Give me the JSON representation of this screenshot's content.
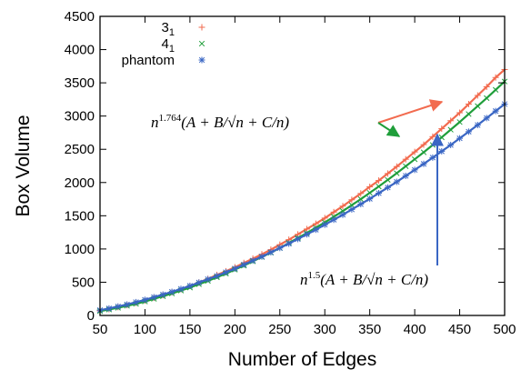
{
  "chart_data": {
    "type": "line",
    "title": "",
    "xlabel": "Number of Edges",
    "ylabel": "Box Volume",
    "xlim": [
      50,
      500
    ],
    "ylim": [
      0,
      4500
    ],
    "x_ticks": [
      50,
      100,
      150,
      200,
      250,
      300,
      350,
      400,
      450,
      500
    ],
    "y_ticks": [
      0,
      500,
      1000,
      1500,
      2000,
      2500,
      3000,
      3500,
      4000,
      4500
    ],
    "grid": false,
    "legend_position": "top-left",
    "series": [
      {
        "name": "3",
        "name_subscript": "1",
        "color": "#f26b4f",
        "marker": "plus",
        "x": [
          50,
          60,
          70,
          80,
          90,
          100,
          110,
          120,
          130,
          140,
          150,
          160,
          170,
          180,
          190,
          200,
          210,
          220,
          230,
          240,
          250,
          260,
          270,
          280,
          290,
          300,
          310,
          320,
          330,
          340,
          350,
          360,
          370,
          380,
          390,
          400,
          410,
          420,
          430,
          440,
          450,
          460,
          470,
          480,
          490,
          500
        ],
        "y": [
          70,
          95,
          125,
          155,
          190,
          225,
          265,
          305,
          350,
          395,
          445,
          495,
          550,
          610,
          665,
          725,
          790,
          855,
          920,
          990,
          1065,
          1140,
          1220,
          1300,
          1380,
          1465,
          1555,
          1645,
          1740,
          1835,
          1935,
          2030,
          2135,
          2240,
          2350,
          2460,
          2570,
          2690,
          2810,
          2930,
          3050,
          3180,
          3310,
          3440,
          3580,
          3700
        ]
      },
      {
        "name": "4",
        "name_subscript": "1",
        "color": "#1f9e3a",
        "marker": "cross",
        "x": [
          50,
          60,
          70,
          80,
          90,
          100,
          110,
          120,
          130,
          140,
          150,
          160,
          170,
          180,
          190,
          200,
          210,
          220,
          230,
          240,
          250,
          260,
          270,
          280,
          290,
          300,
          310,
          320,
          330,
          340,
          350,
          360,
          370,
          380,
          390,
          400,
          410,
          420,
          430,
          440,
          450,
          460,
          470,
          480,
          490,
          500
        ],
        "y": [
          65,
          90,
          115,
          145,
          175,
          210,
          250,
          290,
          330,
          375,
          420,
          470,
          520,
          575,
          630,
          690,
          750,
          815,
          880,
          945,
          1015,
          1090,
          1165,
          1240,
          1320,
          1400,
          1485,
          1570,
          1660,
          1750,
          1845,
          1940,
          2040,
          2140,
          2245,
          2350,
          2455,
          2565,
          2680,
          2795,
          2910,
          3030,
          3150,
          3270,
          3395,
          3520
        ]
      },
      {
        "name": "phantom",
        "color": "#3a66c4",
        "marker": "star",
        "x": [
          50,
          60,
          70,
          80,
          90,
          100,
          110,
          120,
          130,
          140,
          150,
          160,
          170,
          180,
          190,
          200,
          210,
          220,
          230,
          240,
          250,
          260,
          270,
          280,
          290,
          300,
          310,
          320,
          330,
          340,
          350,
          360,
          370,
          380,
          390,
          400,
          410,
          420,
          430,
          440,
          450,
          460,
          470,
          480,
          490,
          500
        ],
        "y": [
          80,
          105,
          135,
          165,
          200,
          235,
          275,
          315,
          355,
          400,
          445,
          495,
          545,
          595,
          650,
          705,
          765,
          825,
          885,
          950,
          1015,
          1080,
          1150,
          1220,
          1290,
          1365,
          1440,
          1515,
          1595,
          1675,
          1755,
          1840,
          1925,
          2010,
          2100,
          2190,
          2280,
          2375,
          2470,
          2565,
          2665,
          2765,
          2865,
          2970,
          3075,
          3180
        ]
      }
    ],
    "annotations": [
      {
        "base": "n",
        "exponent": "1.764",
        "body": "(A + B/√n + C/n)",
        "arrow_color": "#f26b4f",
        "arrow_color_2": "#1f9e3a"
      },
      {
        "base": "n",
        "exponent": "1.5",
        "body": "(A + B/√n + C/n)",
        "arrow_color": "#3a66c4"
      }
    ]
  }
}
